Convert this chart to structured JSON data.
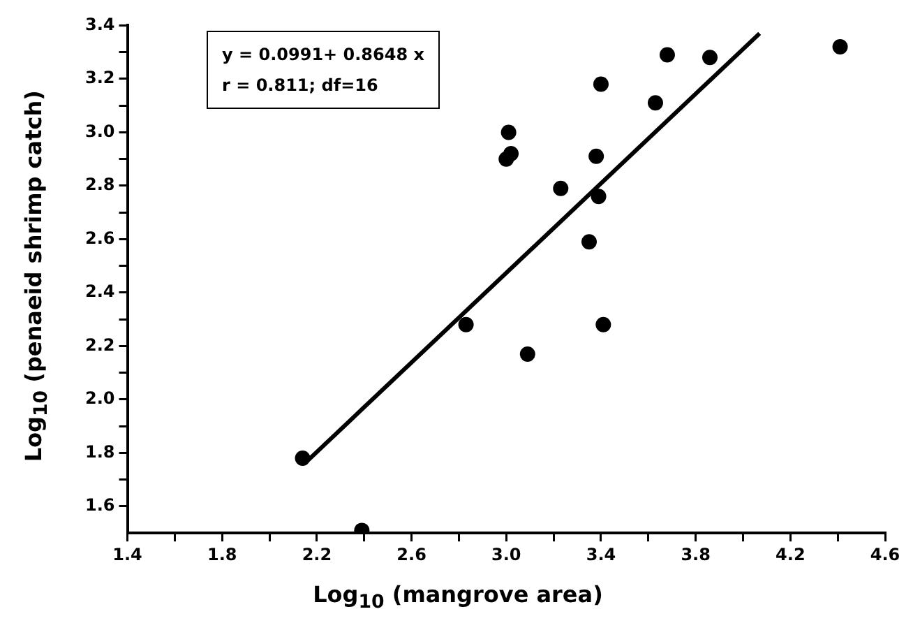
{
  "chart_data": {
    "type": "scatter",
    "xlabel": "Log$_{10}$ (mangrove area)",
    "ylabel": "Log$_{10}$ (penaeid shrimp catch)",
    "annotations": [
      "y = 0.0991+ 0.8648 x",
      "r = 0.811; df=16"
    ],
    "xlim": [
      1.4,
      4.6
    ],
    "ylim": [
      1.5,
      3.4
    ],
    "xticks": [
      {
        "value": 1.4,
        "label": "1.4"
      },
      {
        "value": 1.6,
        "label": null
      },
      {
        "value": 1.8,
        "label": "1.8"
      },
      {
        "value": 2.0,
        "label": null
      },
      {
        "value": 2.2,
        "label": "2.2"
      },
      {
        "value": 2.4,
        "label": null
      },
      {
        "value": 2.6,
        "label": "2.6"
      },
      {
        "value": 2.8,
        "label": null
      },
      {
        "value": 3.0,
        "label": "3.0"
      },
      {
        "value": 3.2,
        "label": null
      },
      {
        "value": 3.4,
        "label": "3.4"
      },
      {
        "value": 3.6,
        "label": null
      },
      {
        "value": 3.8,
        "label": "3.8"
      },
      {
        "value": 4.0,
        "label": null
      },
      {
        "value": 4.2,
        "label": "4.2"
      },
      {
        "value": 4.4,
        "label": null
      },
      {
        "value": 4.6,
        "label": "4.6"
      }
    ],
    "yticks": [
      {
        "value": 1.6,
        "label": "1.6"
      },
      {
        "value": 1.7,
        "label": null
      },
      {
        "value": 1.8,
        "label": "1.8"
      },
      {
        "value": 1.9,
        "label": null
      },
      {
        "value": 2.0,
        "label": "2.0"
      },
      {
        "value": 2.1,
        "label": null
      },
      {
        "value": 2.2,
        "label": "2.2"
      },
      {
        "value": 2.3,
        "label": null
      },
      {
        "value": 2.4,
        "label": "2.4"
      },
      {
        "value": 2.5,
        "label": null
      },
      {
        "value": 2.6,
        "label": "2.6"
      },
      {
        "value": 2.7,
        "label": null
      },
      {
        "value": 2.8,
        "label": "2.8"
      },
      {
        "value": 2.9,
        "label": null
      },
      {
        "value": 3.0,
        "label": "3.0"
      },
      {
        "value": 3.1,
        "label": null
      },
      {
        "value": 3.2,
        "label": "3.2"
      },
      {
        "value": 3.3,
        "label": null
      },
      {
        "value": 3.4,
        "label": "3.4"
      }
    ],
    "grid": false,
    "legend": false,
    "marker": "circle",
    "series": [
      {
        "color": "#000000",
        "x": [
          4.41,
          3.68,
          3.86,
          3.4,
          3.63,
          3.01,
          3.0,
          3.02,
          3.38,
          3.23,
          3.39,
          3.35,
          2.83,
          3.41,
          3.09,
          2.14,
          2.39
        ],
        "values": [
          3.32,
          3.29,
          3.28,
          3.18,
          3.11,
          3.0,
          2.9,
          2.92,
          2.91,
          2.79,
          2.76,
          2.59,
          2.28,
          2.28,
          2.17,
          1.78,
          1.51
        ]
      },
      {
        "type": "line",
        "color": "#000000",
        "marker": "none",
        "x": [
          2.16,
          4.07
        ],
        "values": [
          1.77,
          3.37
        ]
      }
    ]
  }
}
